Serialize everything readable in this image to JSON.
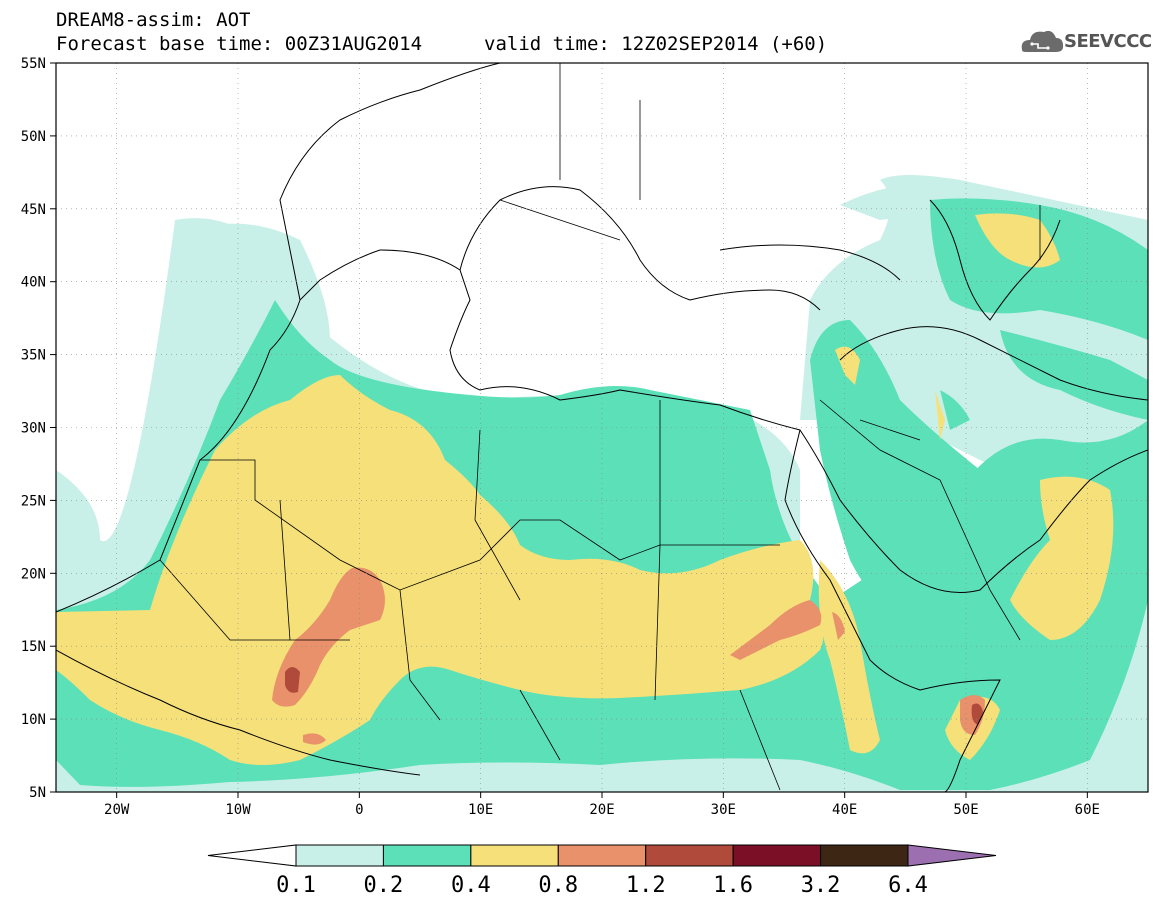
{
  "header": {
    "title": "DREAM8-assim: AOT",
    "base_time": "Forecast base time: 00Z31AUG2014",
    "valid_time": "valid time: 12Z02SEP2014 (+60)",
    "logo_text": "SEEVCCC"
  },
  "map": {
    "lon_range": [
      -25,
      65
    ],
    "lat_range": [
      5,
      55
    ],
    "lon_ticks": [
      {
        "value": -20,
        "label": "20W"
      },
      {
        "value": -10,
        "label": "10W"
      },
      {
        "value": 0,
        "label": "0"
      },
      {
        "value": 10,
        "label": "10E"
      },
      {
        "value": 20,
        "label": "20E"
      },
      {
        "value": 30,
        "label": "30E"
      },
      {
        "value": 40,
        "label": "40E"
      },
      {
        "value": 50,
        "label": "50E"
      },
      {
        "value": 60,
        "label": "60E"
      }
    ],
    "lat_ticks": [
      {
        "value": 5,
        "label": "5N"
      },
      {
        "value": 10,
        "label": "10N"
      },
      {
        "value": 15,
        "label": "15N"
      },
      {
        "value": 20,
        "label": "20N"
      },
      {
        "value": 25,
        "label": "25N"
      },
      {
        "value": 30,
        "label": "30N"
      },
      {
        "value": 35,
        "label": "35N"
      },
      {
        "value": 40,
        "label": "40N"
      },
      {
        "value": 45,
        "label": "45N"
      },
      {
        "value": 50,
        "label": "50N"
      },
      {
        "value": 55,
        "label": "55N"
      }
    ],
    "gridlines": "dotted"
  },
  "colorbar": {
    "levels": [
      "0.1",
      "0.2",
      "0.4",
      "0.8",
      "1.2",
      "1.6",
      "3.2",
      "6.4"
    ],
    "colors": [
      "#ffffff",
      "#c9f0e8",
      "#5ce0b8",
      "#f5e07a",
      "#e9916a",
      "#b04a3a",
      "#7a0f26",
      "#3d2614",
      "#9c6fb0"
    ]
  },
  "chart_data": {
    "type": "heatmap",
    "variable": "AOT",
    "color_levels": [
      0.1,
      0.2,
      0.4,
      0.8,
      1.2,
      1.6,
      3.2,
      6.4
    ],
    "regions": [
      {
        "level": "0.1-0.2",
        "approx_area": "Atlantic off Morocco, eastern Mediterranean, Caspian and Iran"
      },
      {
        "level": "0.2-0.4",
        "approx_area": "Sahel margins, Libya-Egypt coast, Arabian Peninsula, Caspian"
      },
      {
        "level": "0.4-0.8",
        "approx_area": "Western and central Sahara, Sahel band, Sudan, Oman, north Caspian"
      },
      {
        "level": "0.8-1.2",
        "approx_area": "Mali-Niger (~5W-2E, 12-20N), Sudan (~32-38E, 14-17N), Somalia"
      },
      {
        "level": "1.2-1.6",
        "approx_area": "Burkina Faso (~5W, 12-14N), northern Somalia (~50E, 10N)"
      }
    ]
  }
}
